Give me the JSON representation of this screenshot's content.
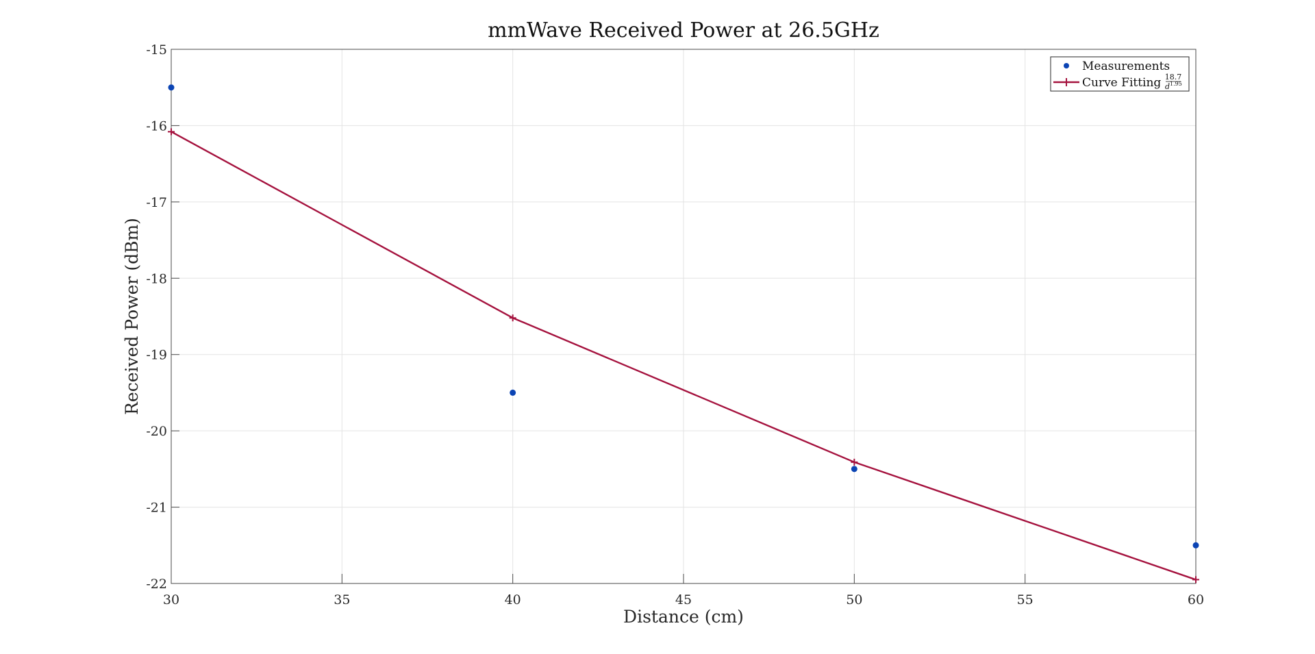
{
  "chart_data": {
    "type": "scatter",
    "title": "mmWave Received Power at 26.5GHz",
    "xlabel": "Distance (cm)",
    "ylabel": "Received Power (dBm)",
    "xlim": [
      30,
      60
    ],
    "ylim": [
      -22,
      -15
    ],
    "xticks": [
      30,
      35,
      40,
      45,
      50,
      55,
      60
    ],
    "yticks": [
      -15,
      -16,
      -17,
      -18,
      -19,
      -20,
      -21,
      -22
    ],
    "grid": true,
    "legend_position": "top-right",
    "series": [
      {
        "name": "Measurements",
        "kind": "markers",
        "color": "#0b44b4",
        "x": [
          30,
          40,
          50,
          60
        ],
        "y": [
          -15.5,
          -19.5,
          -20.5,
          -21.5
        ]
      },
      {
        "name": "Curve Fitting",
        "kind": "line+plus-markers",
        "color": "#a5123e",
        "x": [
          30,
          40,
          50,
          60
        ],
        "y": [
          -16.08,
          -18.52,
          -20.41,
          -21.95
        ]
      }
    ],
    "legend_formula": {
      "numerator": "18.7",
      "base": "d",
      "exponent": "1.95"
    }
  }
}
